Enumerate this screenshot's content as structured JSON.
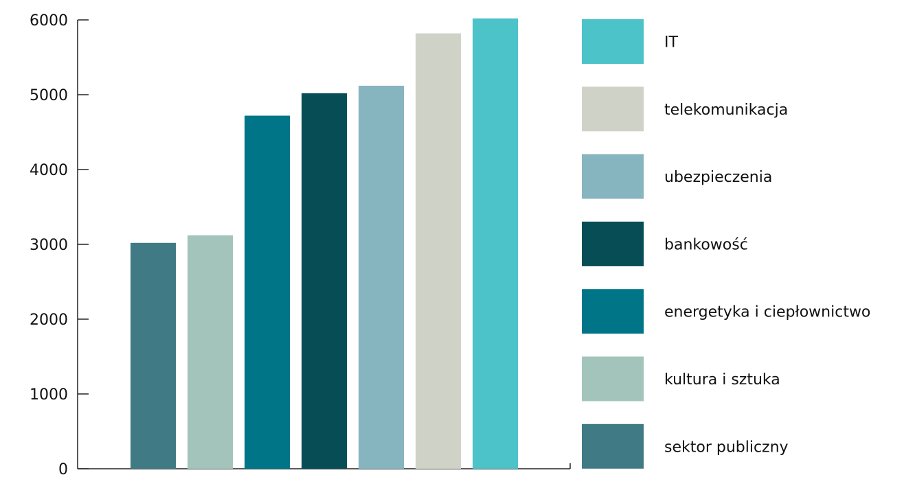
{
  "chart_data": {
    "type": "bar",
    "categories": [
      "sektor publiczny",
      "kultura i sztuka",
      "energetyka i ciepłownictwo",
      "bankowość",
      "ubezpieczenia",
      "telekomunikacja",
      "IT"
    ],
    "values": [
      3020,
      3120,
      4720,
      5020,
      5120,
      5820,
      6020
    ],
    "colors": [
      "#3f7a85",
      "#a3c4bb",
      "#007587",
      "#064d56",
      "#86b4bf",
      "#cfd2c6",
      "#4cc2c9"
    ],
    "yticks": [
      0,
      1000,
      2000,
      3000,
      4000,
      5000,
      6000
    ],
    "ylim": [
      0,
      6000
    ],
    "title": "",
    "xlabel": "",
    "ylabel": "",
    "legend": {
      "placement": "right",
      "order": [
        "IT",
        "telekomunikacja",
        "ubezpieczenia",
        "bankowość",
        "energetyka i ciepłownictwo",
        "kultura i sztuka",
        "sektor publiczny"
      ]
    },
    "grid": false
  }
}
